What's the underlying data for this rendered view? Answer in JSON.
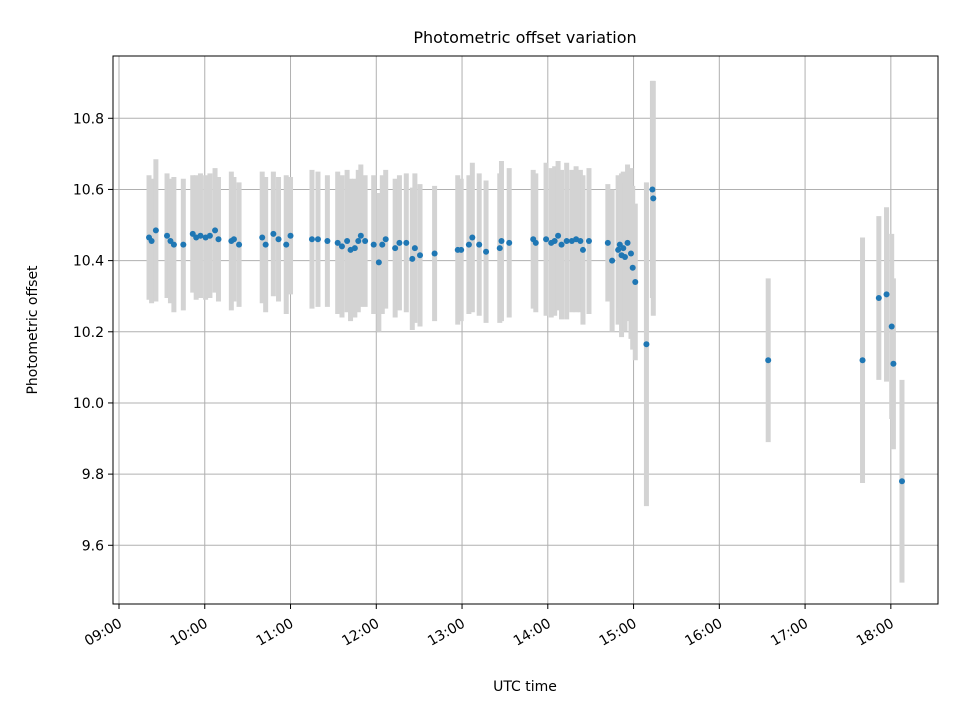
{
  "chart_data": {
    "type": "scatter",
    "title": "Photometric offset variation",
    "xlabel": "UTC time",
    "ylabel": "Photometric offset",
    "x_unit": "hours UTC",
    "xlim": [
      8.93,
      18.55
    ],
    "ylim": [
      9.435,
      10.975
    ],
    "x_ticks": [
      {
        "value": 9,
        "label": "09:00"
      },
      {
        "value": 10,
        "label": "10:00"
      },
      {
        "value": 11,
        "label": "11:00"
      },
      {
        "value": 12,
        "label": "12:00"
      },
      {
        "value": 13,
        "label": "13:00"
      },
      {
        "value": 14,
        "label": "14:00"
      },
      {
        "value": 15,
        "label": "15:00"
      },
      {
        "value": 16,
        "label": "16:00"
      },
      {
        "value": 17,
        "label": "17:00"
      },
      {
        "value": 18,
        "label": "18:00"
      }
    ],
    "y_ticks": [
      {
        "value": 9.6,
        "label": "9.6"
      },
      {
        "value": 9.8,
        "label": "9.8"
      },
      {
        "value": 10.0,
        "label": "10.0"
      },
      {
        "value": 10.2,
        "label": "10.2"
      },
      {
        "value": 10.4,
        "label": "10.4"
      },
      {
        "value": 10.6,
        "label": "10.6"
      },
      {
        "value": 10.8,
        "label": "10.8"
      }
    ],
    "grid": true,
    "marker_color": "#1f77b4",
    "errorbar_color": "#d3d3d3",
    "points": [
      {
        "x": 9.35,
        "y": 10.465,
        "err": 0.175
      },
      {
        "x": 9.38,
        "y": 10.455,
        "err": 0.175
      },
      {
        "x": 9.43,
        "y": 10.485,
        "err": 0.2
      },
      {
        "x": 9.56,
        "y": 10.47,
        "err": 0.175
      },
      {
        "x": 9.6,
        "y": 10.455,
        "err": 0.175
      },
      {
        "x": 9.64,
        "y": 10.445,
        "err": 0.19
      },
      {
        "x": 9.75,
        "y": 10.445,
        "err": 0.185
      },
      {
        "x": 9.86,
        "y": 10.475,
        "err": 0.165
      },
      {
        "x": 9.9,
        "y": 10.465,
        "err": 0.175
      },
      {
        "x": 9.95,
        "y": 10.47,
        "err": 0.175
      },
      {
        "x": 10.01,
        "y": 10.465,
        "err": 0.175
      },
      {
        "x": 10.06,
        "y": 10.47,
        "err": 0.175
      },
      {
        "x": 10.12,
        "y": 10.485,
        "err": 0.175
      },
      {
        "x": 10.16,
        "y": 10.46,
        "err": 0.175
      },
      {
        "x": 10.31,
        "y": 10.455,
        "err": 0.195
      },
      {
        "x": 10.34,
        "y": 10.46,
        "err": 0.175
      },
      {
        "x": 10.4,
        "y": 10.445,
        "err": 0.175
      },
      {
        "x": 10.67,
        "y": 10.465,
        "err": 0.185
      },
      {
        "x": 10.71,
        "y": 10.445,
        "err": 0.19
      },
      {
        "x": 10.8,
        "y": 10.475,
        "err": 0.175
      },
      {
        "x": 10.86,
        "y": 10.46,
        "err": 0.175
      },
      {
        "x": 10.95,
        "y": 10.445,
        "err": 0.195
      },
      {
        "x": 11.0,
        "y": 10.47,
        "err": 0.165
      },
      {
        "x": 11.25,
        "y": 10.46,
        "err": 0.195
      },
      {
        "x": 11.32,
        "y": 10.46,
        "err": 0.19
      },
      {
        "x": 11.43,
        "y": 10.455,
        "err": 0.185
      },
      {
        "x": 11.55,
        "y": 10.45,
        "err": 0.2
      },
      {
        "x": 11.6,
        "y": 10.44,
        "err": 0.2
      },
      {
        "x": 11.66,
        "y": 10.455,
        "err": 0.2
      },
      {
        "x": 11.7,
        "y": 10.43,
        "err": 0.2
      },
      {
        "x": 11.75,
        "y": 10.435,
        "err": 0.195
      },
      {
        "x": 11.79,
        "y": 10.455,
        "err": 0.2
      },
      {
        "x": 11.82,
        "y": 10.47,
        "err": 0.2
      },
      {
        "x": 11.87,
        "y": 10.455,
        "err": 0.185
      },
      {
        "x": 11.97,
        "y": 10.445,
        "err": 0.195
      },
      {
        "x": 12.03,
        "y": 10.395,
        "err": 0.195
      },
      {
        "x": 12.07,
        "y": 10.445,
        "err": 0.195
      },
      {
        "x": 12.11,
        "y": 10.46,
        "err": 0.195
      },
      {
        "x": 12.22,
        "y": 10.435,
        "err": 0.195
      },
      {
        "x": 12.27,
        "y": 10.45,
        "err": 0.19
      },
      {
        "x": 12.35,
        "y": 10.45,
        "err": 0.195
      },
      {
        "x": 12.42,
        "y": 10.405,
        "err": 0.2
      },
      {
        "x": 12.45,
        "y": 10.435,
        "err": 0.21
      },
      {
        "x": 12.51,
        "y": 10.415,
        "err": 0.2
      },
      {
        "x": 12.68,
        "y": 10.42,
        "err": 0.19
      },
      {
        "x": 12.95,
        "y": 10.43,
        "err": 0.21
      },
      {
        "x": 12.99,
        "y": 10.43,
        "err": 0.2
      },
      {
        "x": 13.08,
        "y": 10.445,
        "err": 0.195
      },
      {
        "x": 13.12,
        "y": 10.465,
        "err": 0.21
      },
      {
        "x": 13.2,
        "y": 10.445,
        "err": 0.2
      },
      {
        "x": 13.28,
        "y": 10.425,
        "err": 0.2
      },
      {
        "x": 13.44,
        "y": 10.435,
        "err": 0.21
      },
      {
        "x": 13.46,
        "y": 10.455,
        "err": 0.225
      },
      {
        "x": 13.55,
        "y": 10.45,
        "err": 0.21
      },
      {
        "x": 13.83,
        "y": 10.46,
        "err": 0.195
      },
      {
        "x": 13.86,
        "y": 10.45,
        "err": 0.195
      },
      {
        "x": 13.98,
        "y": 10.46,
        "err": 0.215
      },
      {
        "x": 14.04,
        "y": 10.45,
        "err": 0.21
      },
      {
        "x": 14.08,
        "y": 10.455,
        "err": 0.21
      },
      {
        "x": 14.12,
        "y": 10.47,
        "err": 0.21
      },
      {
        "x": 14.16,
        "y": 10.445,
        "err": 0.21
      },
      {
        "x": 14.22,
        "y": 10.455,
        "err": 0.22
      },
      {
        "x": 14.28,
        "y": 10.455,
        "err": 0.2
      },
      {
        "x": 14.33,
        "y": 10.46,
        "err": 0.205
      },
      {
        "x": 14.38,
        "y": 10.455,
        "err": 0.2
      },
      {
        "x": 14.41,
        "y": 10.43,
        "err": 0.21
      },
      {
        "x": 14.48,
        "y": 10.455,
        "err": 0.205
      },
      {
        "x": 14.7,
        "y": 10.45,
        "err": 0.165
      },
      {
        "x": 14.75,
        "y": 10.4,
        "err": 0.2
      },
      {
        "x": 14.82,
        "y": 10.43,
        "err": 0.21
      },
      {
        "x": 14.84,
        "y": 10.445,
        "err": 0.18
      },
      {
        "x": 14.86,
        "y": 10.415,
        "err": 0.23
      },
      {
        "x": 14.88,
        "y": 10.435,
        "err": 0.215
      },
      {
        "x": 14.9,
        "y": 10.41,
        "err": 0.21
      },
      {
        "x": 14.93,
        "y": 10.45,
        "err": 0.22
      },
      {
        "x": 14.97,
        "y": 10.42,
        "err": 0.24
      },
      {
        "x": 14.99,
        "y": 10.38,
        "err": 0.23
      },
      {
        "x": 15.02,
        "y": 10.34,
        "err": 0.22
      },
      {
        "x": 15.15,
        "y": 10.165,
        "err": 0.455
      },
      {
        "x": 15.22,
        "y": 10.6,
        "err": 0.305
      },
      {
        "x": 15.23,
        "y": 10.575,
        "err": 0.33
      },
      {
        "x": 16.57,
        "y": 10.12,
        "err": 0.23
      },
      {
        "x": 17.67,
        "y": 10.12,
        "err": 0.345
      },
      {
        "x": 17.86,
        "y": 10.295,
        "err": 0.23
      },
      {
        "x": 17.95,
        "y": 10.305,
        "err": 0.245
      },
      {
        "x": 18.01,
        "y": 10.215,
        "err": 0.26
      },
      {
        "x": 18.03,
        "y": 10.11,
        "err": 0.24
      },
      {
        "x": 18.13,
        "y": 9.78,
        "err": 0.285
      }
    ]
  }
}
